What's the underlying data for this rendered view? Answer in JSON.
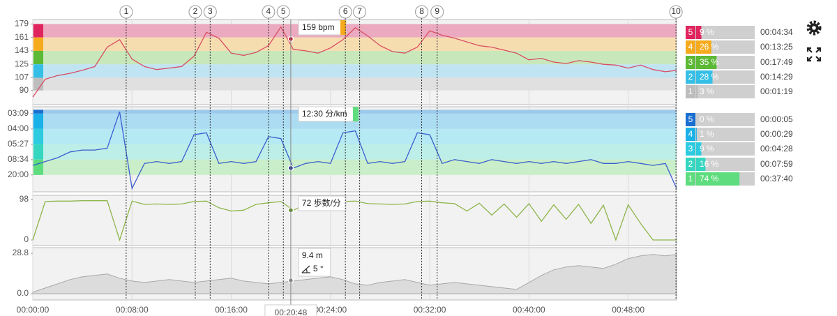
{
  "x_axis": {
    "xlim": [
      0,
      51.9
    ],
    "xticks": [
      {
        "value": 0,
        "label": "00:00:00"
      },
      {
        "value": 8,
        "label": "00:08:00"
      },
      {
        "value": 16,
        "label": "00:16:00"
      },
      {
        "value": 24,
        "label": "00:24:00"
      },
      {
        "value": 32,
        "label": "00:32:00"
      },
      {
        "value": 40,
        "label": "00:40:00"
      },
      {
        "value": 48,
        "label": "00:48:00"
      }
    ],
    "x": [
      0,
      1,
      2,
      3,
      4,
      5,
      6,
      7,
      8,
      9,
      10,
      11,
      12,
      13,
      14,
      15,
      16,
      17,
      18,
      19,
      20,
      21,
      22,
      23,
      24,
      25,
      26,
      27,
      28,
      29,
      30,
      31,
      32,
      33,
      34,
      35,
      36,
      37,
      38,
      39,
      40,
      41,
      42,
      43,
      44,
      45,
      46,
      47,
      48,
      49,
      50,
      51,
      51.9
    ]
  },
  "laps": {
    "labels": [
      "1",
      "2",
      "3",
      "4",
      "5",
      "6",
      "7",
      "8",
      "9",
      "10"
    ],
    "x": [
      7.53,
      13.1,
      14.3,
      19.0,
      20.2,
      25.2,
      26.35,
      31.35,
      32.6,
      51.85
    ]
  },
  "cursor_x": {
    "value": 20.8,
    "label": "00:20:48"
  },
  "chart_data": [
    {
      "type": "line",
      "color": "#d94d63",
      "ylim": [
        71,
        185
      ],
      "yticks": [
        90,
        107,
        125,
        143,
        161,
        179
      ],
      "values": [
        81,
        105,
        110,
        113,
        117,
        122,
        148,
        158,
        132,
        122,
        118,
        120,
        122,
        136,
        168,
        160,
        140,
        137,
        141,
        150,
        175,
        145,
        143,
        140,
        147,
        158,
        174,
        163,
        150,
        142,
        140,
        148,
        170,
        164,
        160,
        155,
        150,
        148,
        144,
        140,
        131,
        133,
        128,
        126,
        130,
        128,
        125,
        124,
        120,
        124,
        118,
        115,
        117
      ],
      "cursor": {
        "value": 159,
        "label": "159 bpm"
      },
      "cursor_color": "#f5ab1d",
      "dot_color": "#c0102a",
      "zone_edges": [
        179,
        161,
        143,
        125,
        107,
        90
      ],
      "band_colors": [
        "#ebaabf",
        "#f6ddb0",
        "#c8e7ba",
        "#c0e4f2",
        "#e0e0e0"
      ],
      "zones": {
        "names": [
          "5",
          "4",
          "3",
          "2",
          "1"
        ],
        "colors": [
          "#e0245e",
          "#f5ab1d",
          "#5cb935",
          "#35bfe6",
          "#bdbdbd"
        ],
        "values": [
          9,
          26,
          35,
          28,
          3
        ],
        "value_labels": [
          "9 %",
          "26 %",
          "35 %",
          "28 %",
          "3 %"
        ],
        "times": [
          "00:04:34",
          "00:13:25",
          "00:17:49",
          "00:14:29",
          "00:01:19"
        ]
      }
    },
    {
      "type": "line",
      "color": "#3a5fcf",
      "ylim": [
        -1.4,
        20.8
      ],
      "yticks": [
        {
          "value": 19,
          "label": "03:09"
        },
        {
          "value": 15,
          "label": "04:00"
        },
        {
          "value": 11,
          "label": "05:27"
        },
        {
          "value": 7,
          "label": "08:34"
        },
        {
          "value": 3,
          "label": "20:00"
        }
      ],
      "values": [
        5.5,
        6.5,
        7.5,
        9,
        9.5,
        9.5,
        10,
        19.5,
        -0.5,
        6,
        6.5,
        6,
        6.5,
        13.5,
        14,
        6,
        6.5,
        6,
        6.5,
        13,
        12.5,
        4.8,
        6,
        6.5,
        6,
        14,
        14.5,
        6,
        6.5,
        6,
        6.5,
        14,
        13.5,
        6,
        7,
        6.5,
        6,
        7,
        6.5,
        6,
        6.5,
        6,
        6.5,
        6,
        6.5,
        7,
        6,
        6,
        6.5,
        6,
        5.5,
        6,
        -0.5
      ],
      "cursor": {
        "value": 4.8,
        "label": "12:30 分/km"
      },
      "cursor_color": "#5edc7e",
      "dot_color": "#1a2a8a",
      "zone_edges": [
        20,
        19,
        15,
        11,
        7,
        3
      ],
      "band_colors": [
        "#9cc9ec",
        "#acdcf2",
        "#b5e9f4",
        "#bdeee8",
        "#c9eec9"
      ],
      "zones": {
        "names": [
          "5",
          "4",
          "3",
          "2",
          "1"
        ],
        "colors": [
          "#1a6fd0",
          "#1ab0e8",
          "#2ccbe0",
          "#34d6c0",
          "#5edc7e"
        ],
        "values": [
          0,
          1,
          9,
          16,
          74
        ],
        "value_labels": [
          "0 %",
          "1 %",
          "9 %",
          "16 %",
          "74 %"
        ],
        "times": [
          "00:00:05",
          "00:00:29",
          "00:04:28",
          "00:07:59",
          "00:37:40"
        ]
      }
    },
    {
      "type": "line",
      "color": "#8db54a",
      "ylim": [
        -13.5,
        108
      ],
      "yticks": [
        0,
        98
      ],
      "values": [
        0,
        93,
        94,
        94,
        95,
        95,
        95,
        0,
        94,
        86,
        87,
        86,
        87,
        93,
        94,
        78,
        70,
        72,
        86,
        90,
        93,
        72,
        86,
        87,
        86,
        93,
        94,
        88,
        87,
        86,
        87,
        93,
        94,
        90,
        88,
        70,
        89,
        60,
        87,
        55,
        88,
        45,
        85,
        50,
        86,
        40,
        84,
        0,
        85,
        40,
        0,
        0,
        0
      ],
      "cursor": {
        "value": 72,
        "label": "72 歩数/分"
      },
      "dot_color": "#5a8a20"
    },
    {
      "type": "area",
      "color": "#a8a8a8",
      "ylim": [
        -4.5,
        32.8
      ],
      "yticks": [
        {
          "value": 0,
          "label": "0.0"
        },
        28.8
      ],
      "values": [
        1,
        4,
        7,
        10,
        12,
        13,
        14,
        11,
        9,
        8,
        9,
        10,
        9,
        8,
        9,
        10,
        11,
        9,
        8,
        7,
        8,
        9,
        10,
        11,
        12,
        10,
        7,
        6,
        8,
        9,
        10,
        8,
        6,
        7,
        8,
        7,
        6,
        5,
        4,
        3,
        8,
        13,
        17,
        19,
        20,
        19,
        18,
        21,
        25,
        27,
        28,
        27,
        28
      ],
      "cursor": {
        "value": 9.4,
        "label": "9.4 m"
      },
      "slope": {
        "value": 5,
        "label": "5 °"
      },
      "dot_color": "#888888"
    }
  ]
}
